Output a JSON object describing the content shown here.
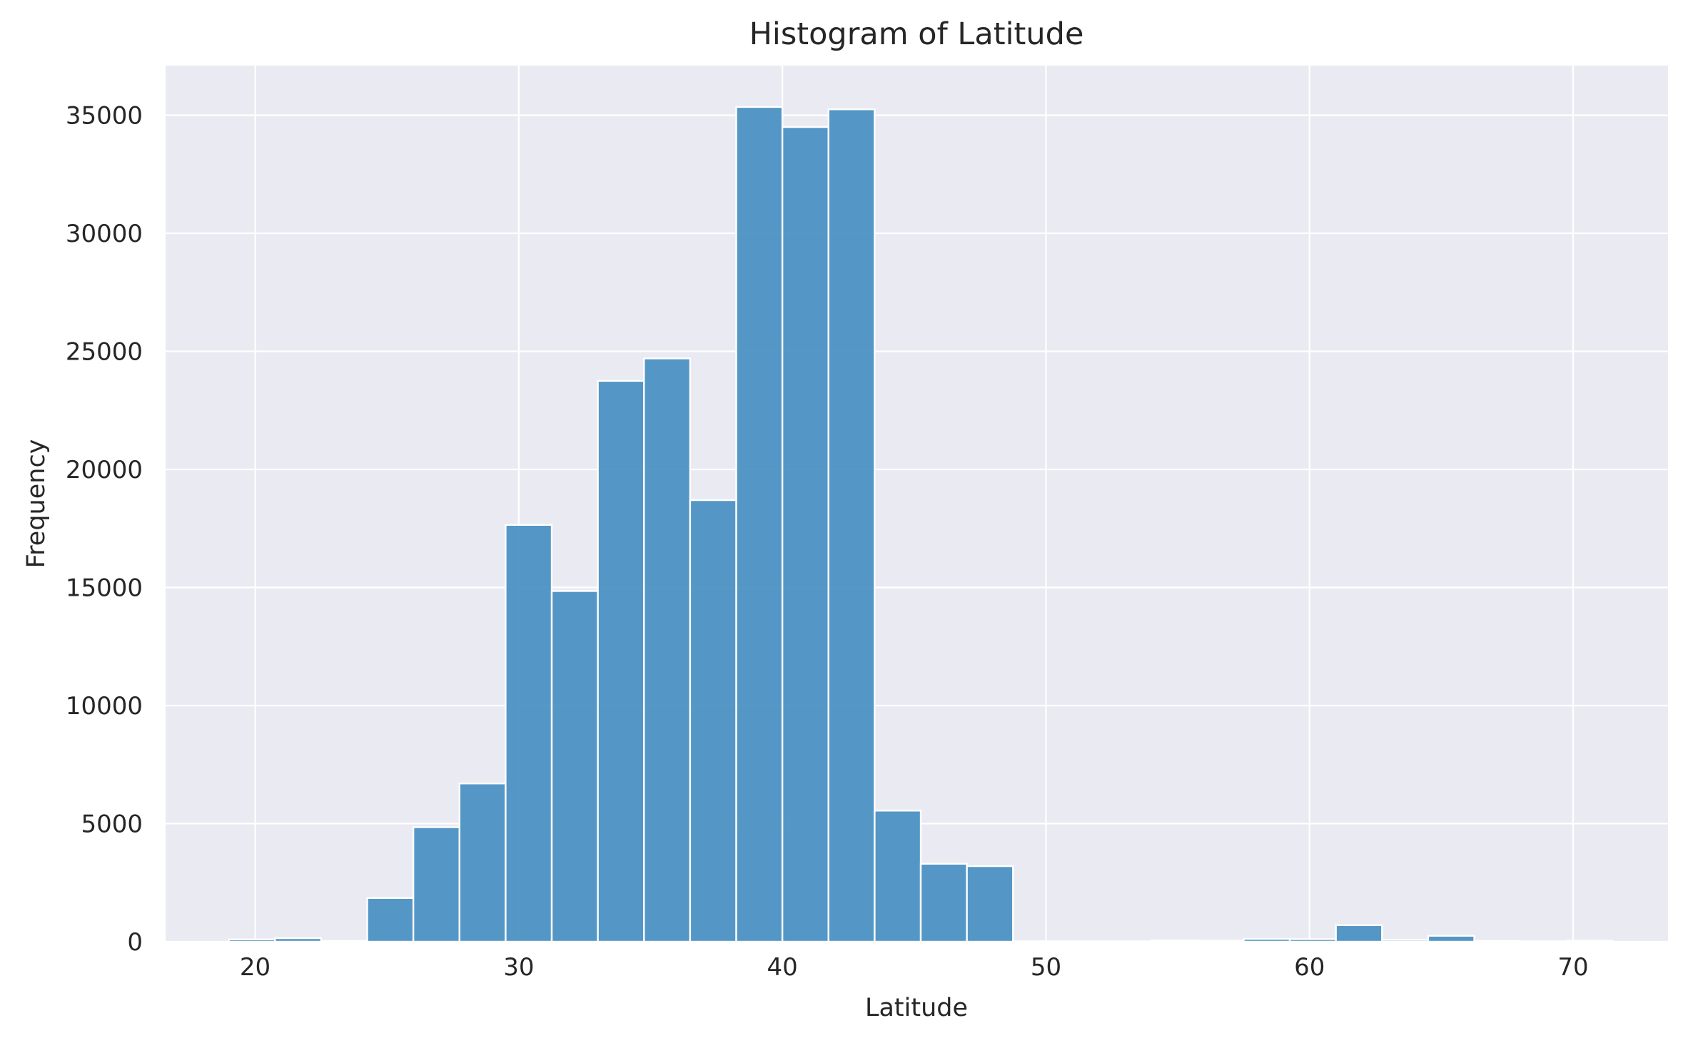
{
  "chart_data": {
    "type": "bar",
    "title": "Histogram of Latitude",
    "xlabel": "Latitude",
    "ylabel": "Frequency",
    "xlim": [
      16.6,
      73.6
    ],
    "ylim": [
      0,
      37100
    ],
    "xticks": [
      20,
      30,
      40,
      50,
      60,
      70
    ],
    "yticks": [
      0,
      5000,
      10000,
      15000,
      20000,
      25000,
      30000,
      35000
    ],
    "grid": true,
    "bin_width": 1.75,
    "bins": [
      {
        "x0": 19.0,
        "x1": 20.75,
        "value": 100
      },
      {
        "x0": 20.75,
        "x1": 22.5,
        "value": 150
      },
      {
        "x0": 22.5,
        "x1": 24.25,
        "value": 30
      },
      {
        "x0": 24.25,
        "x1": 26.0,
        "value": 1850
      },
      {
        "x0": 26.0,
        "x1": 27.75,
        "value": 4850
      },
      {
        "x0": 27.75,
        "x1": 29.5,
        "value": 6700
      },
      {
        "x0": 29.5,
        "x1": 31.25,
        "value": 17650
      },
      {
        "x0": 31.25,
        "x1": 33.0,
        "value": 14850
      },
      {
        "x0": 33.0,
        "x1": 34.75,
        "value": 23750
      },
      {
        "x0": 34.75,
        "x1": 36.5,
        "value": 24700
      },
      {
        "x0": 36.5,
        "x1": 38.25,
        "value": 18700
      },
      {
        "x0": 38.25,
        "x1": 40.0,
        "value": 35350
      },
      {
        "x0": 40.0,
        "x1": 41.75,
        "value": 34500
      },
      {
        "x0": 41.75,
        "x1": 43.5,
        "value": 35250
      },
      {
        "x0": 43.5,
        "x1": 45.25,
        "value": 5550
      },
      {
        "x0": 45.25,
        "x1": 47.0,
        "value": 3300
      },
      {
        "x0": 47.0,
        "x1": 48.75,
        "value": 3200
      },
      {
        "x0": 48.75,
        "x1": 50.5,
        "value": 20
      },
      {
        "x0": 50.5,
        "x1": 52.25,
        "value": 20
      },
      {
        "x0": 52.25,
        "x1": 54.0,
        "value": 20
      },
      {
        "x0": 54.0,
        "x1": 55.75,
        "value": 50
      },
      {
        "x0": 55.75,
        "x1": 57.5,
        "value": 40
      },
      {
        "x0": 57.5,
        "x1": 59.25,
        "value": 120
      },
      {
        "x0": 59.25,
        "x1": 61.0,
        "value": 110
      },
      {
        "x0": 61.0,
        "x1": 62.75,
        "value": 700
      },
      {
        "x0": 62.75,
        "x1": 64.5,
        "value": 80
      },
      {
        "x0": 64.5,
        "x1": 66.25,
        "value": 250
      },
      {
        "x0": 66.25,
        "x1": 68.0,
        "value": 30
      },
      {
        "x0": 68.0,
        "x1": 69.75,
        "value": 20
      },
      {
        "x0": 69.75,
        "x1": 71.5,
        "value": 40
      }
    ],
    "colors": {
      "bar": "#4C92C3",
      "plot_background": "#EAEAF2",
      "grid": "#FFFFFF"
    }
  }
}
